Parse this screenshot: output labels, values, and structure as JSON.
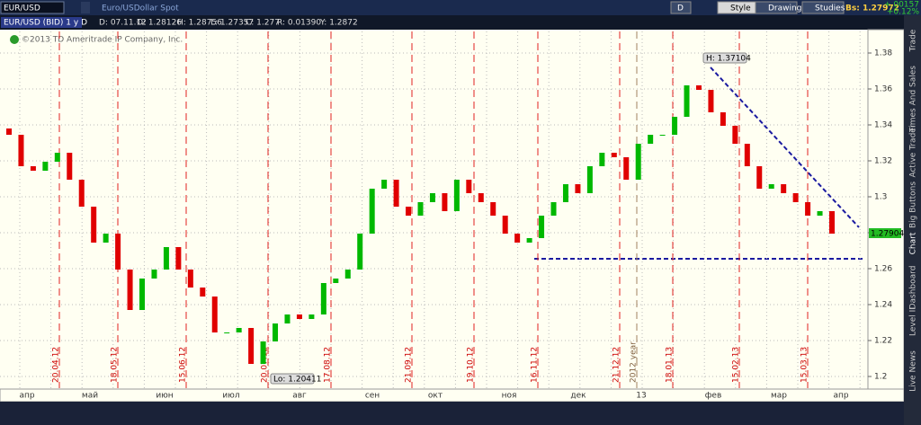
{
  "toolbar": {
    "symbol": "EUR/USD",
    "description": "Euro/USDollar Spot",
    "buttons": [
      "D",
      "Style",
      "Drawings",
      "Studies"
    ],
    "bid": "Bs: 1.27972",
    "change": "+.00157",
    "change_pct": "+0.12%"
  },
  "chart_data": {
    "type": "candlestick",
    "title": "EUR/USD (BID) 1 y D",
    "info": [
      "D: 07.11.12",
      "O: 1.28126",
      "H: 1.28756",
      "L: 1.27357",
      "C: 1.277",
      "R: 0.01390",
      "Y: 1.2872"
    ],
    "copyright": "©2013 TD Ameritrade IP Company, Inc.",
    "open": [
      1.338,
      1.3345,
      1.317,
      1.3145,
      1.3195,
      1.3245,
      1.3095,
      1.2945,
      1.2745,
      1.2795,
      1.2595,
      1.237,
      1.2545,
      1.2595,
      1.272,
      1.2595,
      1.2495,
      1.2445,
      1.2245,
      1.2245,
      1.227,
      1.207,
      1.2195,
      1.2295,
      1.2345,
      1.232,
      1.2345,
      1.252,
      1.2545,
      1.2595,
      1.2795,
      1.3045,
      1.3095,
      1.2945,
      1.2895,
      1.297,
      1.302,
      1.292,
      1.3095,
      1.302,
      1.297,
      1.2895,
      1.2795,
      1.2745,
      1.277,
      1.2895,
      1.297,
      1.307,
      1.302,
      1.317,
      1.3245,
      1.322,
      1.3095,
      1.3295,
      1.3345,
      1.3345,
      1.3445,
      1.362,
      1.3595,
      1.347,
      1.3395,
      1.3295,
      1.317,
      1.3045,
      1.307,
      1.302,
      1.297,
      1.2895,
      1.292
    ],
    "close": [
      1.3345,
      1.317,
      1.3145,
      1.3195,
      1.3245,
      1.3095,
      1.2945,
      1.2745,
      1.2795,
      1.2595,
      1.237,
      1.2545,
      1.2595,
      1.272,
      1.2595,
      1.2495,
      1.2445,
      1.2245,
      1.2245,
      1.227,
      1.207,
      1.2195,
      1.2295,
      1.2345,
      1.232,
      1.2345,
      1.252,
      1.2545,
      1.2595,
      1.2795,
      1.3045,
      1.3095,
      1.2945,
      1.2895,
      1.297,
      1.302,
      1.292,
      1.3095,
      1.302,
      1.297,
      1.2895,
      1.2795,
      1.2745,
      1.277,
      1.2895,
      1.297,
      1.307,
      1.302,
      1.317,
      1.3245,
      1.322,
      1.3095,
      1.3295,
      1.3345,
      1.3345,
      1.3445,
      1.362,
      1.3595,
      1.347,
      1.3395,
      1.3295,
      1.317,
      1.3045,
      1.307,
      1.302,
      1.297,
      1.2895,
      1.292,
      1.2795
    ],
    "up_color": "#00b800",
    "down_color": "#e00000",
    "ylim": [
      1.1935,
      1.392
    ],
    "yticks": [
      1.2,
      1.22,
      1.24,
      1.26,
      1.28,
      1.3,
      1.32,
      1.34,
      1.36,
      1.38
    ],
    "months": [
      "апр",
      "май",
      "июн",
      "июл",
      "авг",
      "сен",
      "окт",
      "ноя",
      "дек",
      "13",
      "фев",
      "мар",
      "апр"
    ],
    "events": [
      "20.04.12",
      "18.05.12",
      "15.06.12",
      "20.07.12",
      "17.08.12",
      "21.09.12",
      "19.10.12",
      "16.11.12",
      "21.12.12",
      "18.01.13",
      "15.02.13",
      "15.03.13"
    ],
    "year_marker": "2012 year",
    "annotations": {
      "high": "H: 1.37104",
      "low": "Lo: 1.20411",
      "last": "1.27904"
    }
  },
  "sidebar": [
    "Trade",
    "Times And Sales",
    "Active Trader",
    "Big Buttons",
    "Chart",
    "Dashboard",
    "Level II",
    "Live News"
  ]
}
